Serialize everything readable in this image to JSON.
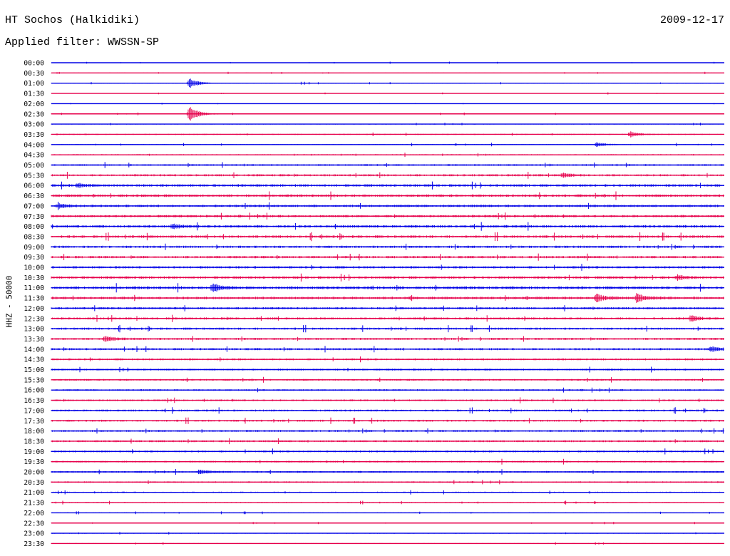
{
  "header": {
    "station": "HT Sochos (Halkidiki)",
    "date": "2009-12-17",
    "filter_label": "Applied filter: WWSSN-SP"
  },
  "chart_data": {
    "type": "line",
    "title": "HT Sochos (Halkidiki)",
    "subtitle": "Applied filter: WWSSN-SP",
    "ylabel": "HHZ - 50000",
    "xlabel": "",
    "y_tick_labels": [
      "00:00",
      "00:30",
      "01:00",
      "01:30",
      "02:00",
      "02:30",
      "03:00",
      "03:30",
      "04:00",
      "04:30",
      "05:00",
      "05:30",
      "06:00",
      "06:30",
      "07:00",
      "07:30",
      "08:00",
      "08:30",
      "09:00",
      "09:30",
      "10:00",
      "10:30",
      "11:00",
      "11:30",
      "12:00",
      "12:30",
      "13:00",
      "13:30",
      "14:00",
      "14:30",
      "15:00",
      "15:30",
      "16:00",
      "16:30",
      "17:00",
      "17:30",
      "18:00",
      "18:30",
      "19:00",
      "19:30",
      "20:00",
      "20:30",
      "21:00",
      "21:30",
      "22:00",
      "22:30",
      "23:00",
      "23:30"
    ],
    "trace_minutes": 30,
    "trace_colors": [
      "#0000e6",
      "#e6004c"
    ],
    "noise_level": [
      0.3,
      0.3,
      0.4,
      0.3,
      0.3,
      0.4,
      0.4,
      0.5,
      0.5,
      0.6,
      0.8,
      1.0,
      1.2,
      1.2,
      1.1,
      1.1,
      1.2,
      1.2,
      1.1,
      1.1,
      1.1,
      1.2,
      1.3,
      1.2,
      1.0,
      1.0,
      1.0,
      1.0,
      1.0,
      0.9,
      0.8,
      0.8,
      0.8,
      0.8,
      0.9,
      0.9,
      0.9,
      0.9,
      0.9,
      0.8,
      0.8,
      0.7,
      0.6,
      0.5,
      0.4,
      0.4,
      0.4,
      0.4
    ],
    "events": [
      {
        "trace": 2,
        "t": 0.205,
        "amp": 7
      },
      {
        "trace": 5,
        "t": 0.205,
        "amp": 12
      },
      {
        "trace": 7,
        "t": 0.86,
        "amp": 4
      },
      {
        "trace": 8,
        "t": 0.81,
        "amp": 3
      },
      {
        "trace": 11,
        "t": 0.76,
        "amp": 3
      },
      {
        "trace": 12,
        "t": 0.04,
        "amp": 3
      },
      {
        "trace": 14,
        "t": 0.01,
        "amp": 3
      },
      {
        "trace": 16,
        "t": 0.18,
        "amp": 3
      },
      {
        "trace": 21,
        "t": 0.93,
        "amp": 3
      },
      {
        "trace": 22,
        "t": 0.24,
        "amp": 6
      },
      {
        "trace": 23,
        "t": 0.81,
        "amp": 6
      },
      {
        "trace": 23,
        "t": 0.87,
        "amp": 6
      },
      {
        "trace": 25,
        "t": 0.95,
        "amp": 4
      },
      {
        "trace": 27,
        "t": 0.08,
        "amp": 4
      },
      {
        "trace": 28,
        "t": 0.98,
        "amp": 4
      },
      {
        "trace": 40,
        "t": 0.22,
        "amp": 3
      }
    ]
  }
}
